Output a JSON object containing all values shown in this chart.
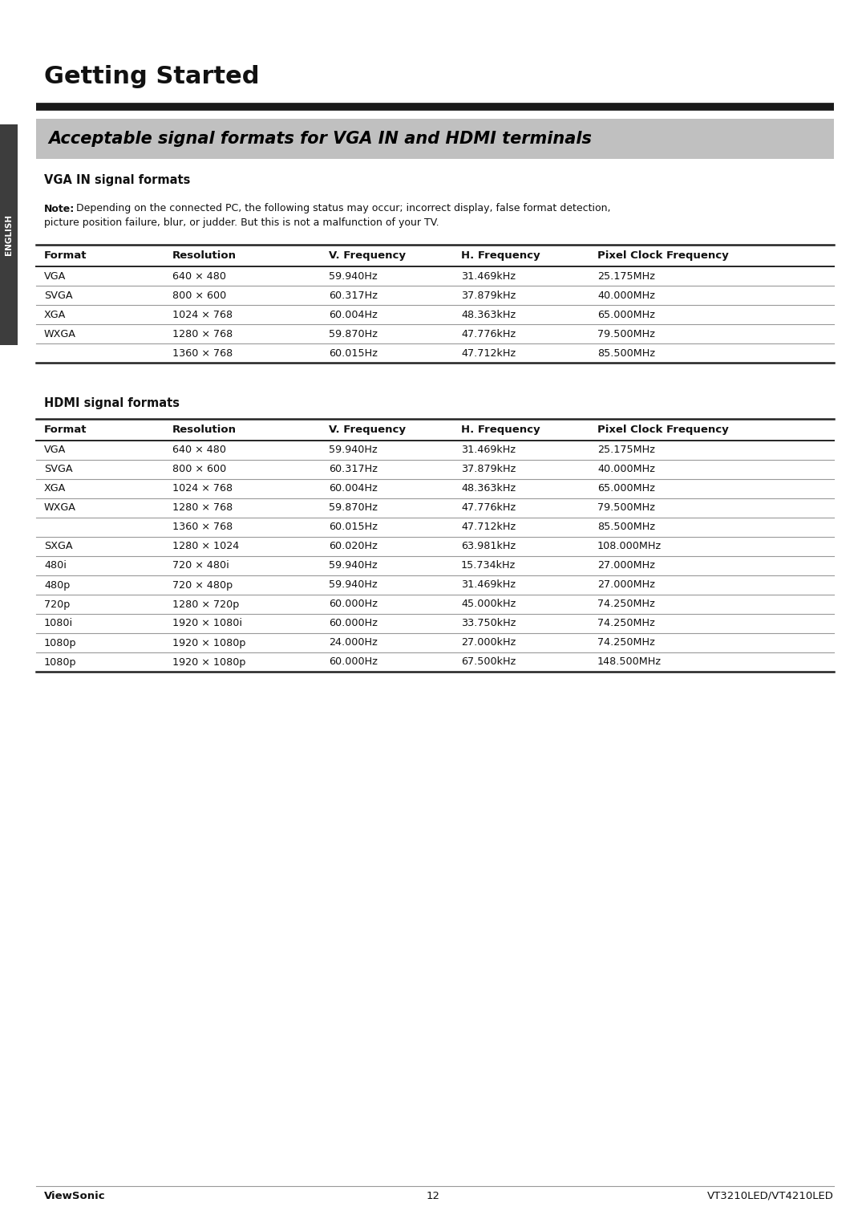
{
  "page_title": "Getting Started",
  "section_title": "Acceptable signal formats for VGA IN and HDMI terminals",
  "section_bg_color": "#c0c0c0",
  "section_title_color": "#000000",
  "vga_section_label": "VGA IN signal formats",
  "note_bold": "Note:",
  "note_rest": " Depending on the connected PC, the following status may occur; incorrect display, false format detection,",
  "note_line2": "picture position failure, blur, or judder. But this is not a malfunction of your TV.",
  "table_headers": [
    "Format",
    "Resolution",
    "V. Frequency",
    "H. Frequency",
    "Pixel Clock Frequency"
  ],
  "vga_rows": [
    [
      "VGA",
      "640 × 480",
      "59.940Hz",
      "31.469kHz",
      "25.175MHz"
    ],
    [
      "SVGA",
      "800 × 600",
      "60.317Hz",
      "37.879kHz",
      "40.000MHz"
    ],
    [
      "XGA",
      "1024 × 768",
      "60.004Hz",
      "48.363kHz",
      "65.000MHz"
    ],
    [
      "WXGA",
      "1280 × 768",
      "59.870Hz",
      "47.776kHz",
      "79.500MHz"
    ],
    [
      "",
      "1360 × 768",
      "60.015Hz",
      "47.712kHz",
      "85.500MHz"
    ]
  ],
  "hdmi_section_label": "HDMI signal formats",
  "hdmi_rows": [
    [
      "VGA",
      "640 × 480",
      "59.940Hz",
      "31.469kHz",
      "25.175MHz"
    ],
    [
      "SVGA",
      "800 × 600",
      "60.317Hz",
      "37.879kHz",
      "40.000MHz"
    ],
    [
      "XGA",
      "1024 × 768",
      "60.004Hz",
      "48.363kHz",
      "65.000MHz"
    ],
    [
      "WXGA",
      "1280 × 768",
      "59.870Hz",
      "47.776kHz",
      "79.500MHz"
    ],
    [
      "",
      "1360 × 768",
      "60.015Hz",
      "47.712kHz",
      "85.500MHz"
    ],
    [
      "SXGA",
      "1280 × 1024",
      "60.020Hz",
      "63.981kHz",
      "108.000MHz"
    ],
    [
      "480i",
      "720 × 480i",
      "59.940Hz",
      "15.734kHz",
      "27.000MHz"
    ],
    [
      "480p",
      "720 × 480p",
      "59.940Hz",
      "31.469kHz",
      "27.000MHz"
    ],
    [
      "720p",
      "1280 × 720p",
      "60.000Hz",
      "45.000kHz",
      "74.250MHz"
    ],
    [
      "1080i",
      "1920 × 1080i",
      "60.000Hz",
      "33.750kHz",
      "74.250MHz"
    ],
    [
      "1080p",
      "1920 × 1080p",
      "24.000Hz",
      "27.000kHz",
      "74.250MHz"
    ],
    [
      "1080p",
      "1920 × 1080p",
      "60.000Hz",
      "67.500kHz",
      "148.500MHz"
    ]
  ],
  "footer_left": "ViewSonic",
  "footer_center": "12",
  "footer_right": "VT3210LED/VT4210LED",
  "sidebar_text": "ENGLISH",
  "sidebar_bg": "#3d3d3d",
  "sidebar_text_color": "#ffffff",
  "bg_color": "#ffffff"
}
